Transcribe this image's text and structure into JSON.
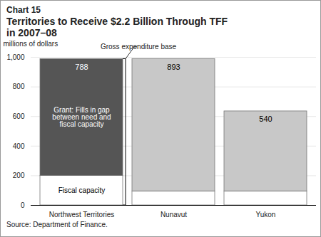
{
  "chart_data": {
    "type": "bar",
    "stacked": true,
    "chart_number": "Chart 15",
    "title": "Territories to Receive $2.2 Billion Through TFF in 2007–08",
    "y_label": "millions of dollars",
    "annotation": "Gross expenditure base",
    "source": "Source: Department of Finance.",
    "categories": [
      "Northwest Territories",
      "Nunavut",
      "Yukon"
    ],
    "series": [
      {
        "name": "Fiscal capacity",
        "colors": [
          "#ffffff",
          "#ffffff",
          "#ffffff"
        ],
        "values": [
          200,
          95,
          95
        ]
      },
      {
        "name": "Grant: Fills in gap between need and fiscal capacity",
        "colors": [
          "#555555",
          "#c8c8c8",
          "#c8c8c8"
        ],
        "values": [
          788,
          893,
          540
        ],
        "data_labels": true
      }
    ],
    "ylim": [
      0,
      1000
    ],
    "yticks": [
      0,
      200,
      400,
      600,
      800,
      {
        "value": 1000,
        "label": "1,000"
      }
    ],
    "grid": true
  }
}
